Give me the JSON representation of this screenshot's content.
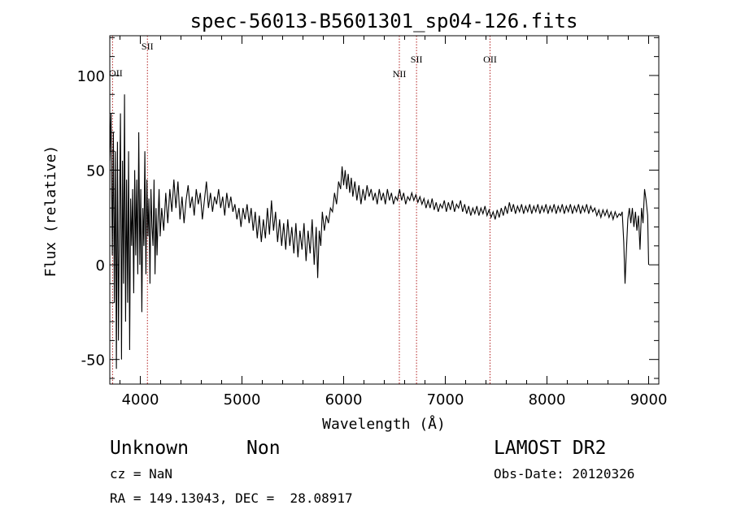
{
  "chart_data": {
    "type": "line",
    "title": "spec-56013-B5601301_sp04-126.fits",
    "xlabel": "Wavelength (Å)",
    "ylabel": "Flux (relative)",
    "xlim": [
      3700,
      9100
    ],
    "ylim": [
      -63,
      121
    ],
    "xticks": [
      4000,
      5000,
      6000,
      7000,
      8000,
      9000
    ],
    "yticks": [
      -50,
      0,
      50,
      100
    ],
    "grid": false,
    "series_color": "#000000",
    "line_color": "#b22222",
    "spectrum": [
      [
        3700,
        55
      ],
      [
        3712,
        80
      ],
      [
        3725,
        5
      ],
      [
        3735,
        70
      ],
      [
        3745,
        -20
      ],
      [
        3755,
        60
      ],
      [
        3765,
        -55
      ],
      [
        3775,
        65
      ],
      [
        3785,
        -40
      ],
      [
        3795,
        25
      ],
      [
        3805,
        80
      ],
      [
        3815,
        -50
      ],
      [
        3825,
        55
      ],
      [
        3835,
        -10
      ],
      [
        3845,
        90
      ],
      [
        3855,
        -30
      ],
      [
        3865,
        45
      ],
      [
        3875,
        -20
      ],
      [
        3885,
        60
      ],
      [
        3895,
        -45
      ],
      [
        3905,
        35
      ],
      [
        3915,
        10
      ],
      [
        3925,
        40
      ],
      [
        3935,
        -15
      ],
      [
        3945,
        50
      ],
      [
        3955,
        5
      ],
      [
        3965,
        45
      ],
      [
        3975,
        -5
      ],
      [
        3985,
        70
      ],
      [
        3995,
        0
      ],
      [
        4005,
        40
      ],
      [
        4015,
        -25
      ],
      [
        4025,
        30
      ],
      [
        4035,
        10
      ],
      [
        4045,
        60
      ],
      [
        4055,
        -5
      ],
      [
        4065,
        45
      ],
      [
        4075,
        15
      ],
      [
        4085,
        35
      ],
      [
        4095,
        -10
      ],
      [
        4105,
        40
      ],
      [
        4115,
        20
      ],
      [
        4125,
        10
      ],
      [
        4135,
        45
      ],
      [
        4145,
        -5
      ],
      [
        4155,
        30
      ],
      [
        4165,
        5
      ],
      [
        4175,
        25
      ],
      [
        4185,
        40
      ],
      [
        4195,
        15
      ],
      [
        4210,
        30
      ],
      [
        4230,
        18
      ],
      [
        4250,
        38
      ],
      [
        4270,
        22
      ],
      [
        4290,
        40
      ],
      [
        4310,
        28
      ],
      [
        4330,
        45
      ],
      [
        4350,
        30
      ],
      [
        4370,
        44
      ],
      [
        4390,
        24
      ],
      [
        4410,
        36
      ],
      [
        4430,
        22
      ],
      [
        4450,
        34
      ],
      [
        4470,
        42
      ],
      [
        4490,
        30
      ],
      [
        4510,
        36
      ],
      [
        4530,
        26
      ],
      [
        4550,
        40
      ],
      [
        4570,
        32
      ],
      [
        4590,
        38
      ],
      [
        4610,
        24
      ],
      [
        4630,
        34
      ],
      [
        4650,
        44
      ],
      [
        4670,
        30
      ],
      [
        4690,
        38
      ],
      [
        4710,
        28
      ],
      [
        4730,
        36
      ],
      [
        4750,
        32
      ],
      [
        4770,
        40
      ],
      [
        4790,
        30
      ],
      [
        4810,
        36
      ],
      [
        4830,
        26
      ],
      [
        4850,
        38
      ],
      [
        4870,
        30
      ],
      [
        4890,
        36
      ],
      [
        4910,
        28
      ],
      [
        4930,
        32
      ],
      [
        4950,
        24
      ],
      [
        4970,
        30
      ],
      [
        4990,
        20
      ],
      [
        5010,
        30
      ],
      [
        5030,
        24
      ],
      [
        5050,
        32
      ],
      [
        5070,
        22
      ],
      [
        5090,
        30
      ],
      [
        5110,
        18
      ],
      [
        5130,
        28
      ],
      [
        5150,
        14
      ],
      [
        5170,
        26
      ],
      [
        5190,
        12
      ],
      [
        5210,
        24
      ],
      [
        5230,
        14
      ],
      [
        5250,
        30
      ],
      [
        5270,
        16
      ],
      [
        5290,
        34
      ],
      [
        5310,
        18
      ],
      [
        5330,
        28
      ],
      [
        5350,
        12
      ],
      [
        5370,
        24
      ],
      [
        5390,
        10
      ],
      [
        5410,
        22
      ],
      [
        5430,
        8
      ],
      [
        5450,
        24
      ],
      [
        5470,
        10
      ],
      [
        5490,
        20
      ],
      [
        5510,
        6
      ],
      [
        5530,
        22
      ],
      [
        5550,
        4
      ],
      [
        5570,
        18
      ],
      [
        5590,
        8
      ],
      [
        5610,
        22
      ],
      [
        5630,
        2
      ],
      [
        5650,
        18
      ],
      [
        5670,
        6
      ],
      [
        5690,
        24
      ],
      [
        5710,
        0
      ],
      [
        5730,
        20
      ],
      [
        5745,
        -7
      ],
      [
        5760,
        18
      ],
      [
        5775,
        10
      ],
      [
        5790,
        28
      ],
      [
        5810,
        18
      ],
      [
        5830,
        26
      ],
      [
        5850,
        22
      ],
      [
        5870,
        30
      ],
      [
        5890,
        28
      ],
      [
        5910,
        38
      ],
      [
        5930,
        32
      ],
      [
        5950,
        44
      ],
      [
        5970,
        40
      ],
      [
        5985,
        52
      ],
      [
        6000,
        42
      ],
      [
        6015,
        50
      ],
      [
        6030,
        40
      ],
      [
        6045,
        48
      ],
      [
        6060,
        38
      ],
      [
        6075,
        46
      ],
      [
        6090,
        36
      ],
      [
        6110,
        44
      ],
      [
        6130,
        34
      ],
      [
        6150,
        42
      ],
      [
        6170,
        32
      ],
      [
        6190,
        40
      ],
      [
        6210,
        34
      ],
      [
        6230,
        42
      ],
      [
        6250,
        36
      ],
      [
        6270,
        40
      ],
      [
        6290,
        34
      ],
      [
        6310,
        38
      ],
      [
        6330,
        32
      ],
      [
        6350,
        40
      ],
      [
        6370,
        34
      ],
      [
        6390,
        38
      ],
      [
        6410,
        32
      ],
      [
        6430,
        40
      ],
      [
        6450,
        34
      ],
      [
        6470,
        38
      ],
      [
        6490,
        32
      ],
      [
        6510,
        36
      ],
      [
        6530,
        34
      ],
      [
        6550,
        40
      ],
      [
        6570,
        34
      ],
      [
        6590,
        38
      ],
      [
        6610,
        32
      ],
      [
        6630,
        36
      ],
      [
        6650,
        34
      ],
      [
        6670,
        38
      ],
      [
        6690,
        34
      ],
      [
        6710,
        37
      ],
      [
        6730,
        33
      ],
      [
        6750,
        36
      ],
      [
        6770,
        32
      ],
      [
        6790,
        35
      ],
      [
        6810,
        30
      ],
      [
        6830,
        34
      ],
      [
        6850,
        30
      ],
      [
        6870,
        35
      ],
      [
        6890,
        29
      ],
      [
        6910,
        33
      ],
      [
        6930,
        28
      ],
      [
        6950,
        32
      ],
      [
        6970,
        30
      ],
      [
        6990,
        34
      ],
      [
        7010,
        28
      ],
      [
        7030,
        33
      ],
      [
        7050,
        29
      ],
      [
        7070,
        34
      ],
      [
        7090,
        28
      ],
      [
        7110,
        32
      ],
      [
        7130,
        30
      ],
      [
        7150,
        34
      ],
      [
        7170,
        28
      ],
      [
        7190,
        32
      ],
      [
        7210,
        27
      ],
      [
        7230,
        31
      ],
      [
        7250,
        26
      ],
      [
        7270,
        30
      ],
      [
        7290,
        27
      ],
      [
        7310,
        31
      ],
      [
        7330,
        26
      ],
      [
        7350,
        30
      ],
      [
        7370,
        27
      ],
      [
        7390,
        31
      ],
      [
        7410,
        26
      ],
      [
        7430,
        29
      ],
      [
        7450,
        25
      ],
      [
        7470,
        28
      ],
      [
        7490,
        24
      ],
      [
        7510,
        29
      ],
      [
        7530,
        25
      ],
      [
        7550,
        30
      ],
      [
        7570,
        26
      ],
      [
        7590,
        31
      ],
      [
        7610,
        27
      ],
      [
        7630,
        33
      ],
      [
        7650,
        28
      ],
      [
        7670,
        32
      ],
      [
        7690,
        27
      ],
      [
        7710,
        31
      ],
      [
        7730,
        28
      ],
      [
        7750,
        32
      ],
      [
        7770,
        27
      ],
      [
        7790,
        31
      ],
      [
        7810,
        28
      ],
      [
        7830,
        32
      ],
      [
        7850,
        27
      ],
      [
        7870,
        31
      ],
      [
        7890,
        28
      ],
      [
        7910,
        32
      ],
      [
        7930,
        27
      ],
      [
        7950,
        31
      ],
      [
        7970,
        28
      ],
      [
        7990,
        32
      ],
      [
        8010,
        27
      ],
      [
        8030,
        31
      ],
      [
        8050,
        28
      ],
      [
        8070,
        32
      ],
      [
        8090,
        27
      ],
      [
        8110,
        31
      ],
      [
        8130,
        28
      ],
      [
        8150,
        32
      ],
      [
        8170,
        27
      ],
      [
        8190,
        31
      ],
      [
        8210,
        28
      ],
      [
        8230,
        32
      ],
      [
        8250,
        27
      ],
      [
        8270,
        31
      ],
      [
        8290,
        28
      ],
      [
        8310,
        32
      ],
      [
        8330,
        27
      ],
      [
        8350,
        31
      ],
      [
        8370,
        28
      ],
      [
        8390,
        32
      ],
      [
        8410,
        27
      ],
      [
        8430,
        31
      ],
      [
        8450,
        28
      ],
      [
        8470,
        30
      ],
      [
        8490,
        26
      ],
      [
        8510,
        29
      ],
      [
        8530,
        25
      ],
      [
        8550,
        29
      ],
      [
        8570,
        26
      ],
      [
        8590,
        29
      ],
      [
        8610,
        25
      ],
      [
        8630,
        28
      ],
      [
        8650,
        24
      ],
      [
        8670,
        28
      ],
      [
        8690,
        25
      ],
      [
        8710,
        27
      ],
      [
        8725,
        26
      ],
      [
        8740,
        28
      ],
      [
        8755,
        12
      ],
      [
        8768,
        -10
      ],
      [
        8780,
        6
      ],
      [
        8795,
        24
      ],
      [
        8810,
        30
      ],
      [
        8825,
        22
      ],
      [
        8840,
        30
      ],
      [
        8855,
        20
      ],
      [
        8870,
        28
      ],
      [
        8885,
        18
      ],
      [
        8900,
        26
      ],
      [
        8915,
        8
      ],
      [
        8930,
        30
      ],
      [
        8945,
        22
      ],
      [
        8960,
        40
      ],
      [
        8975,
        34
      ],
      [
        8990,
        26
      ],
      [
        9000,
        0
      ]
    ],
    "emission_lines": [
      {
        "name": "OII",
        "wavelength": 3727
      },
      {
        "name": "SII",
        "wavelength": 4070
      },
      {
        "name": "NII",
        "wavelength": 6548
      },
      {
        "name": "SII",
        "wavelength": 6717
      },
      {
        "name": "OII",
        "wavelength": 7440
      }
    ]
  },
  "footer": {
    "classification": "Unknown",
    "subclass": "Non",
    "cz": "cz = NaN",
    "coords": "RA = 149.13043, DEC =  28.08917",
    "survey": "LAMOST DR2",
    "obs_date": "Obs-Date: 20120326"
  }
}
